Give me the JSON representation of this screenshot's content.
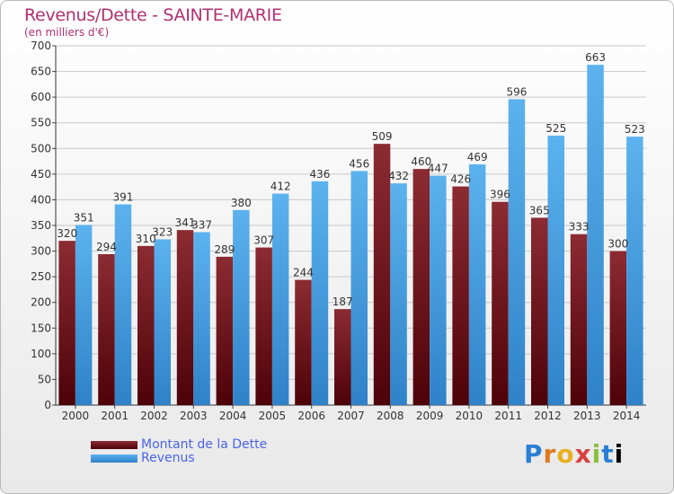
{
  "header": {
    "title": "Revenus/Dette - SAINTE-MARIE",
    "subtitle": "(en milliers d'€)"
  },
  "legend": {
    "items": [
      {
        "label": "Montant de la Dette",
        "color": "#6d0f18"
      },
      {
        "label": "Revenus",
        "color": "#4ea6e6"
      }
    ]
  },
  "logo": {
    "text": "Proxiti"
  },
  "chart_data": {
    "type": "bar",
    "categories": [
      "2000",
      "2001",
      "2002",
      "2003",
      "2004",
      "2005",
      "2006",
      "2007",
      "2008",
      "2009",
      "2010",
      "2011",
      "2012",
      "2013",
      "2014"
    ],
    "series": [
      {
        "name": "Montant de la Dette",
        "color": "#6d0f18",
        "values": [
          320,
          294,
          310,
          341,
          289,
          307,
          244,
          187,
          509,
          460,
          426,
          396,
          365,
          333,
          300
        ]
      },
      {
        "name": "Revenus",
        "color": "#4ea6e6",
        "values": [
          351,
          391,
          323,
          337,
          380,
          412,
          436,
          456,
          432,
          447,
          469,
          596,
          525,
          663,
          523
        ]
      }
    ],
    "title": "Revenus/Dette - SAINTE-MARIE",
    "ylabel": "(en milliers d'€)",
    "ylim": [
      0,
      700
    ],
    "yticks": [
      0,
      50,
      100,
      150,
      200,
      250,
      300,
      350,
      400,
      450,
      500,
      550,
      600,
      650,
      700
    ],
    "grid": true,
    "legend": "bottom-left"
  }
}
